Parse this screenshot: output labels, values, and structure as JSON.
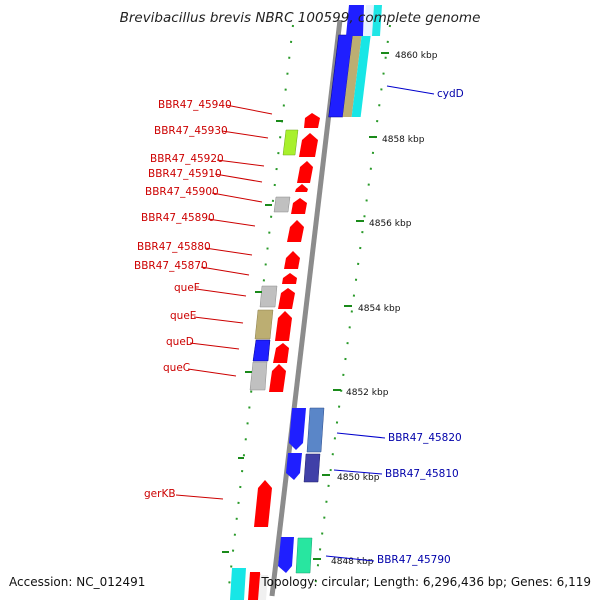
{
  "title": "Brevibacillus brevis NBRC 100599, complete genome",
  "footer": {
    "accession": "Accession: NC_012491",
    "topology": "Topology: circular; Length: 6,296,436 bp; Genes: 6,119"
  },
  "colors": {
    "red_gene": "#ff0000",
    "blue_gene": "#1f1fff",
    "label_left": "#cc0000",
    "label_right": "#0000aa",
    "tick": "#1a8a1a",
    "backbone": "#8c8c8c"
  },
  "scale_ticks_kbp": [
    {
      "kbp": 4860,
      "label": "4860 kbp"
    },
    {
      "kbp": 4858,
      "label": "4858 kbp"
    },
    {
      "kbp": 4856,
      "label": "4856 kbp"
    },
    {
      "kbp": 4854,
      "label": "4854 kbp"
    },
    {
      "kbp": 4852,
      "label": "4852 kbp"
    },
    {
      "kbp": 4850,
      "label": "4850 kbp"
    },
    {
      "kbp": 4848,
      "label": "4848 kbp"
    }
  ],
  "genes_left": [
    {
      "name": "BBR47_45940"
    },
    {
      "name": "BBR47_45930"
    },
    {
      "name": "BBR47_45920"
    },
    {
      "name": "BBR47_45910"
    },
    {
      "name": "BBR47_45900"
    },
    {
      "name": "BBR47_45890"
    },
    {
      "name": "BBR47_45880"
    },
    {
      "name": "BBR47_45870"
    },
    {
      "name": "queF"
    },
    {
      "name": "queE"
    },
    {
      "name": "queD"
    },
    {
      "name": "queC"
    },
    {
      "name": "gerKB"
    }
  ],
  "genes_right": [
    {
      "name": "cydD"
    },
    {
      "name": "BBR47_45820"
    },
    {
      "name": "BBR47_45810"
    },
    {
      "name": "BBR47_45790"
    }
  ]
}
